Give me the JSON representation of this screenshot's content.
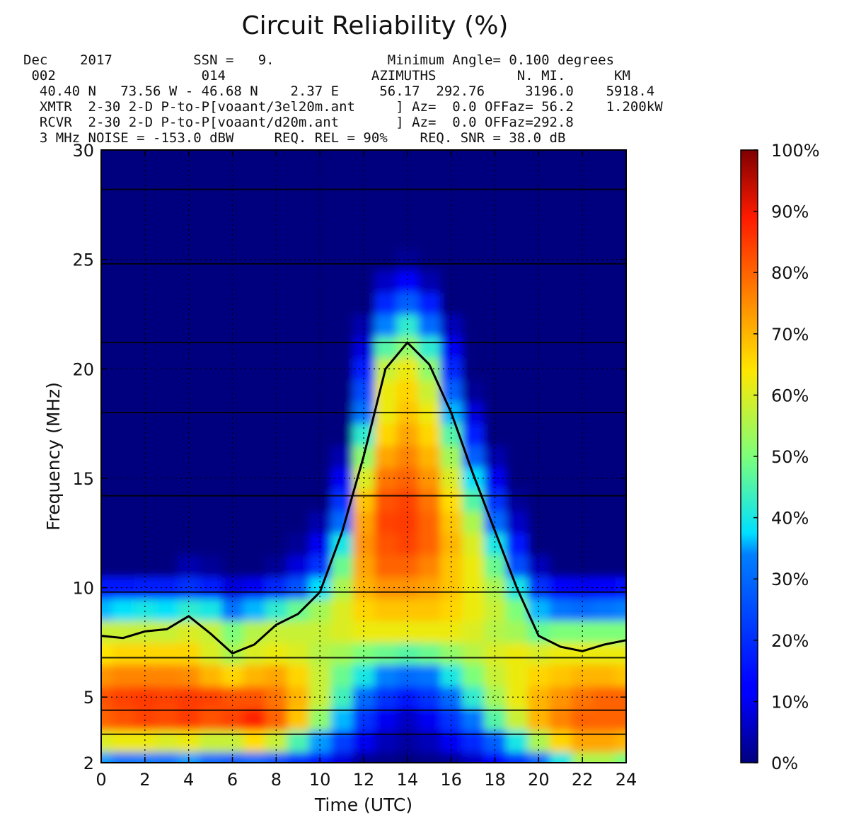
{
  "chart_data": {
    "type": "heatmap",
    "title": "Circuit Reliability (%)",
    "xlabel": "Time (UTC)",
    "ylabel": "Frequency (MHz)",
    "xlim": [
      0,
      24
    ],
    "ylim": [
      2,
      30
    ],
    "x_ticks": [
      "0",
      "2",
      "4",
      "6",
      "8",
      "10",
      "12",
      "14",
      "16",
      "18",
      "20",
      "22",
      "24"
    ],
    "y_ticks": [
      "2",
      "5",
      "10",
      "15",
      "20",
      "25",
      "30"
    ],
    "y_tick_values": [
      2,
      5,
      10,
      15,
      20,
      25,
      30
    ],
    "colorbar_ticks": [
      "0%",
      "10%",
      "20%",
      "30%",
      "40%",
      "50%",
      "60%",
      "70%",
      "80%",
      "90%",
      "100%"
    ],
    "colorbar_range": [
      0,
      100
    ],
    "colormap": "jet",
    "grid": true,
    "header_lines": [
      "Dec    2017          SSN =   9.              Minimum Angle= 0.100 degrees",
      " 002                  014                  AZIMUTHS          N. MI.      KM",
      "  40.40 N   73.56 W - 46.68 N    2.37 E     56.17  292.76     3196.0    5918.4",
      "  XMTR  2-30 2-D P-to-P[voaant/3el20m.ant     ] Az=  0.0 OFFaz= 56.2    1.200kW",
      "  RCVR  2-30 2-D P-to-P[voaant/d20m.ant       ] Az=  0.0 OFFaz=292.8",
      "  3 MHz NOISE = -153.0 dBW     REQ. REL = 90%    REQ. SNR = 38.0 dB"
    ],
    "muf_line": {
      "x": [
        0,
        1,
        2,
        3,
        4,
        5,
        6,
        7,
        8,
        9,
        10,
        11,
        12,
        13,
        14,
        15,
        16,
        17,
        18,
        19,
        20,
        21,
        22,
        23,
        24
      ],
      "y": [
        7.8,
        7.7,
        8.0,
        8.1,
        8.7,
        7.9,
        7.0,
        7.4,
        8.3,
        8.8,
        9.8,
        12.5,
        16.0,
        20.0,
        21.2,
        20.2,
        18.0,
        15.2,
        12.6,
        10.0,
        7.8,
        7.3,
        7.1,
        7.4,
        7.6
      ]
    },
    "horizontal_lines_y": [
      3.3,
      4.4,
      6.8,
      9.8,
      14.2,
      18.0,
      21.2,
      24.8,
      28.2
    ],
    "reliability_grid": {
      "x": [
        0,
        1,
        2,
        3,
        4,
        5,
        6,
        7,
        8,
        9,
        10,
        11,
        12,
        13,
        14,
        15,
        16,
        17,
        18,
        19,
        20,
        21,
        22,
        23,
        24
      ],
      "y": [
        2,
        3,
        4,
        5,
        6,
        7,
        8,
        9,
        10,
        11,
        12,
        13,
        14,
        15,
        16,
        17,
        18,
        19,
        20,
        21,
        22,
        23,
        24,
        25,
        26,
        27,
        28,
        29,
        30
      ],
      "z": [
        [
          35,
          32,
          33,
          32,
          35,
          30,
          28,
          30,
          26,
          20,
          15,
          8,
          2,
          1,
          0,
          1,
          2,
          6,
          12,
          20,
          30,
          40,
          55,
          55,
          50
        ],
        [
          60,
          62,
          62,
          60,
          62,
          58,
          58,
          65,
          58,
          45,
          35,
          22,
          10,
          5,
          3,
          5,
          10,
          18,
          28,
          40,
          55,
          66,
          72,
          72,
          70
        ],
        [
          80,
          82,
          84,
          83,
          85,
          82,
          84,
          88,
          80,
          68,
          52,
          36,
          20,
          10,
          6,
          10,
          20,
          32,
          46,
          58,
          70,
          76,
          80,
          80,
          80
        ],
        [
          82,
          84,
          85,
          84,
          85,
          84,
          82,
          82,
          78,
          70,
          58,
          44,
          30,
          20,
          15,
          20,
          30,
          42,
          54,
          62,
          70,
          74,
          78,
          80,
          80
        ],
        [
          74,
          76,
          76,
          76,
          75,
          70,
          66,
          70,
          72,
          66,
          58,
          48,
          40,
          34,
          30,
          32,
          40,
          50,
          58,
          62,
          66,
          68,
          70,
          70,
          68
        ],
        [
          64,
          66,
          66,
          66,
          66,
          60,
          55,
          60,
          62,
          60,
          56,
          54,
          50,
          48,
          46,
          48,
          52,
          56,
          60,
          62,
          60,
          62,
          62,
          62,
          62
        ],
        [
          58,
          58,
          58,
          58,
          60,
          58,
          50,
          56,
          58,
          58,
          58,
          60,
          62,
          62,
          62,
          62,
          62,
          60,
          56,
          54,
          48,
          50,
          50,
          50,
          50
        ],
        [
          36,
          38,
          40,
          38,
          42,
          40,
          32,
          36,
          42,
          48,
          54,
          60,
          66,
          68,
          68,
          68,
          66,
          62,
          58,
          50,
          36,
          32,
          30,
          32,
          34
        ],
        [
          15,
          15,
          16,
          16,
          20,
          16,
          8,
          10,
          18,
          26,
          38,
          55,
          70,
          74,
          74,
          72,
          68,
          62,
          55,
          40,
          20,
          12,
          10,
          12,
          14
        ],
        [
          0,
          0,
          0,
          0,
          4,
          2,
          0,
          0,
          2,
          8,
          20,
          48,
          72,
          80,
          80,
          76,
          68,
          62,
          48,
          25,
          5,
          0,
          0,
          0,
          0
        ],
        [
          0,
          0,
          0,
          0,
          0,
          0,
          0,
          0,
          0,
          2,
          10,
          40,
          74,
          82,
          84,
          80,
          70,
          60,
          40,
          15,
          0,
          0,
          0,
          0,
          0
        ],
        [
          0,
          0,
          0,
          0,
          0,
          0,
          0,
          0,
          0,
          0,
          4,
          30,
          72,
          84,
          85,
          80,
          68,
          55,
          30,
          6,
          0,
          0,
          0,
          0,
          0
        ],
        [
          0,
          0,
          0,
          0,
          0,
          0,
          0,
          0,
          0,
          0,
          0,
          20,
          68,
          82,
          84,
          78,
          65,
          46,
          20,
          2,
          0,
          0,
          0,
          0,
          0
        ],
        [
          0,
          0,
          0,
          0,
          0,
          0,
          0,
          0,
          0,
          0,
          0,
          10,
          60,
          78,
          80,
          74,
          60,
          38,
          10,
          0,
          0,
          0,
          0,
          0,
          0
        ],
        [
          0,
          0,
          0,
          0,
          0,
          0,
          0,
          0,
          0,
          0,
          0,
          4,
          52,
          72,
          76,
          70,
          54,
          28,
          4,
          0,
          0,
          0,
          0,
          0,
          0
        ],
        [
          0,
          0,
          0,
          0,
          0,
          0,
          0,
          0,
          0,
          0,
          0,
          0,
          42,
          66,
          72,
          66,
          46,
          16,
          0,
          0,
          0,
          0,
          0,
          0,
          0
        ],
        [
          0,
          0,
          0,
          0,
          0,
          0,
          0,
          0,
          0,
          0,
          0,
          0,
          32,
          62,
          68,
          62,
          36,
          8,
          0,
          0,
          0,
          0,
          0,
          0,
          0
        ],
        [
          0,
          0,
          0,
          0,
          0,
          0,
          0,
          0,
          0,
          0,
          0,
          0,
          24,
          62,
          66,
          58,
          28,
          2,
          0,
          0,
          0,
          0,
          0,
          0,
          0
        ],
        [
          0,
          0,
          0,
          0,
          0,
          0,
          0,
          0,
          0,
          0,
          0,
          0,
          16,
          58,
          62,
          52,
          18,
          0,
          0,
          0,
          0,
          0,
          0,
          0,
          0
        ],
        [
          0,
          0,
          0,
          0,
          0,
          0,
          0,
          0,
          0,
          0,
          0,
          0,
          8,
          46,
          52,
          42,
          10,
          0,
          0,
          0,
          0,
          0,
          0,
          0,
          0
        ],
        [
          0,
          0,
          0,
          0,
          0,
          0,
          0,
          0,
          0,
          0,
          0,
          0,
          4,
          34,
          42,
          30,
          5,
          0,
          0,
          0,
          0,
          0,
          0,
          0,
          0
        ],
        [
          0,
          0,
          0,
          0,
          0,
          0,
          0,
          0,
          0,
          0,
          0,
          0,
          0,
          18,
          28,
          16,
          0,
          0,
          0,
          0,
          0,
          0,
          0,
          0,
          0
        ],
        [
          0,
          0,
          0,
          0,
          0,
          0,
          0,
          0,
          0,
          0,
          0,
          0,
          0,
          6,
          12,
          4,
          0,
          0,
          0,
          0,
          0,
          0,
          0,
          0,
          0
        ],
        [
          0,
          0,
          0,
          0,
          0,
          0,
          0,
          0,
          0,
          0,
          0,
          0,
          0,
          0,
          2,
          0,
          0,
          0,
          0,
          0,
          0,
          0,
          0,
          0,
          0
        ],
        [
          0,
          0,
          0,
          0,
          0,
          0,
          0,
          0,
          0,
          0,
          0,
          0,
          0,
          0,
          0,
          0,
          0,
          0,
          0,
          0,
          0,
          0,
          0,
          0,
          0
        ],
        [
          0,
          0,
          0,
          0,
          0,
          0,
          0,
          0,
          0,
          0,
          0,
          0,
          0,
          0,
          0,
          0,
          0,
          0,
          0,
          0,
          0,
          0,
          0,
          0,
          0
        ],
        [
          0,
          0,
          0,
          0,
          0,
          0,
          0,
          0,
          0,
          0,
          0,
          0,
          0,
          0,
          0,
          0,
          0,
          0,
          0,
          0,
          0,
          0,
          0,
          0,
          0
        ],
        [
          0,
          0,
          0,
          0,
          0,
          0,
          0,
          0,
          0,
          0,
          0,
          0,
          0,
          0,
          0,
          0,
          0,
          0,
          0,
          0,
          0,
          0,
          0,
          0,
          0
        ],
        [
          0,
          0,
          0,
          0,
          0,
          0,
          0,
          0,
          0,
          0,
          0,
          0,
          0,
          0,
          0,
          0,
          0,
          0,
          0,
          0,
          0,
          0,
          0,
          0,
          0
        ]
      ]
    }
  }
}
